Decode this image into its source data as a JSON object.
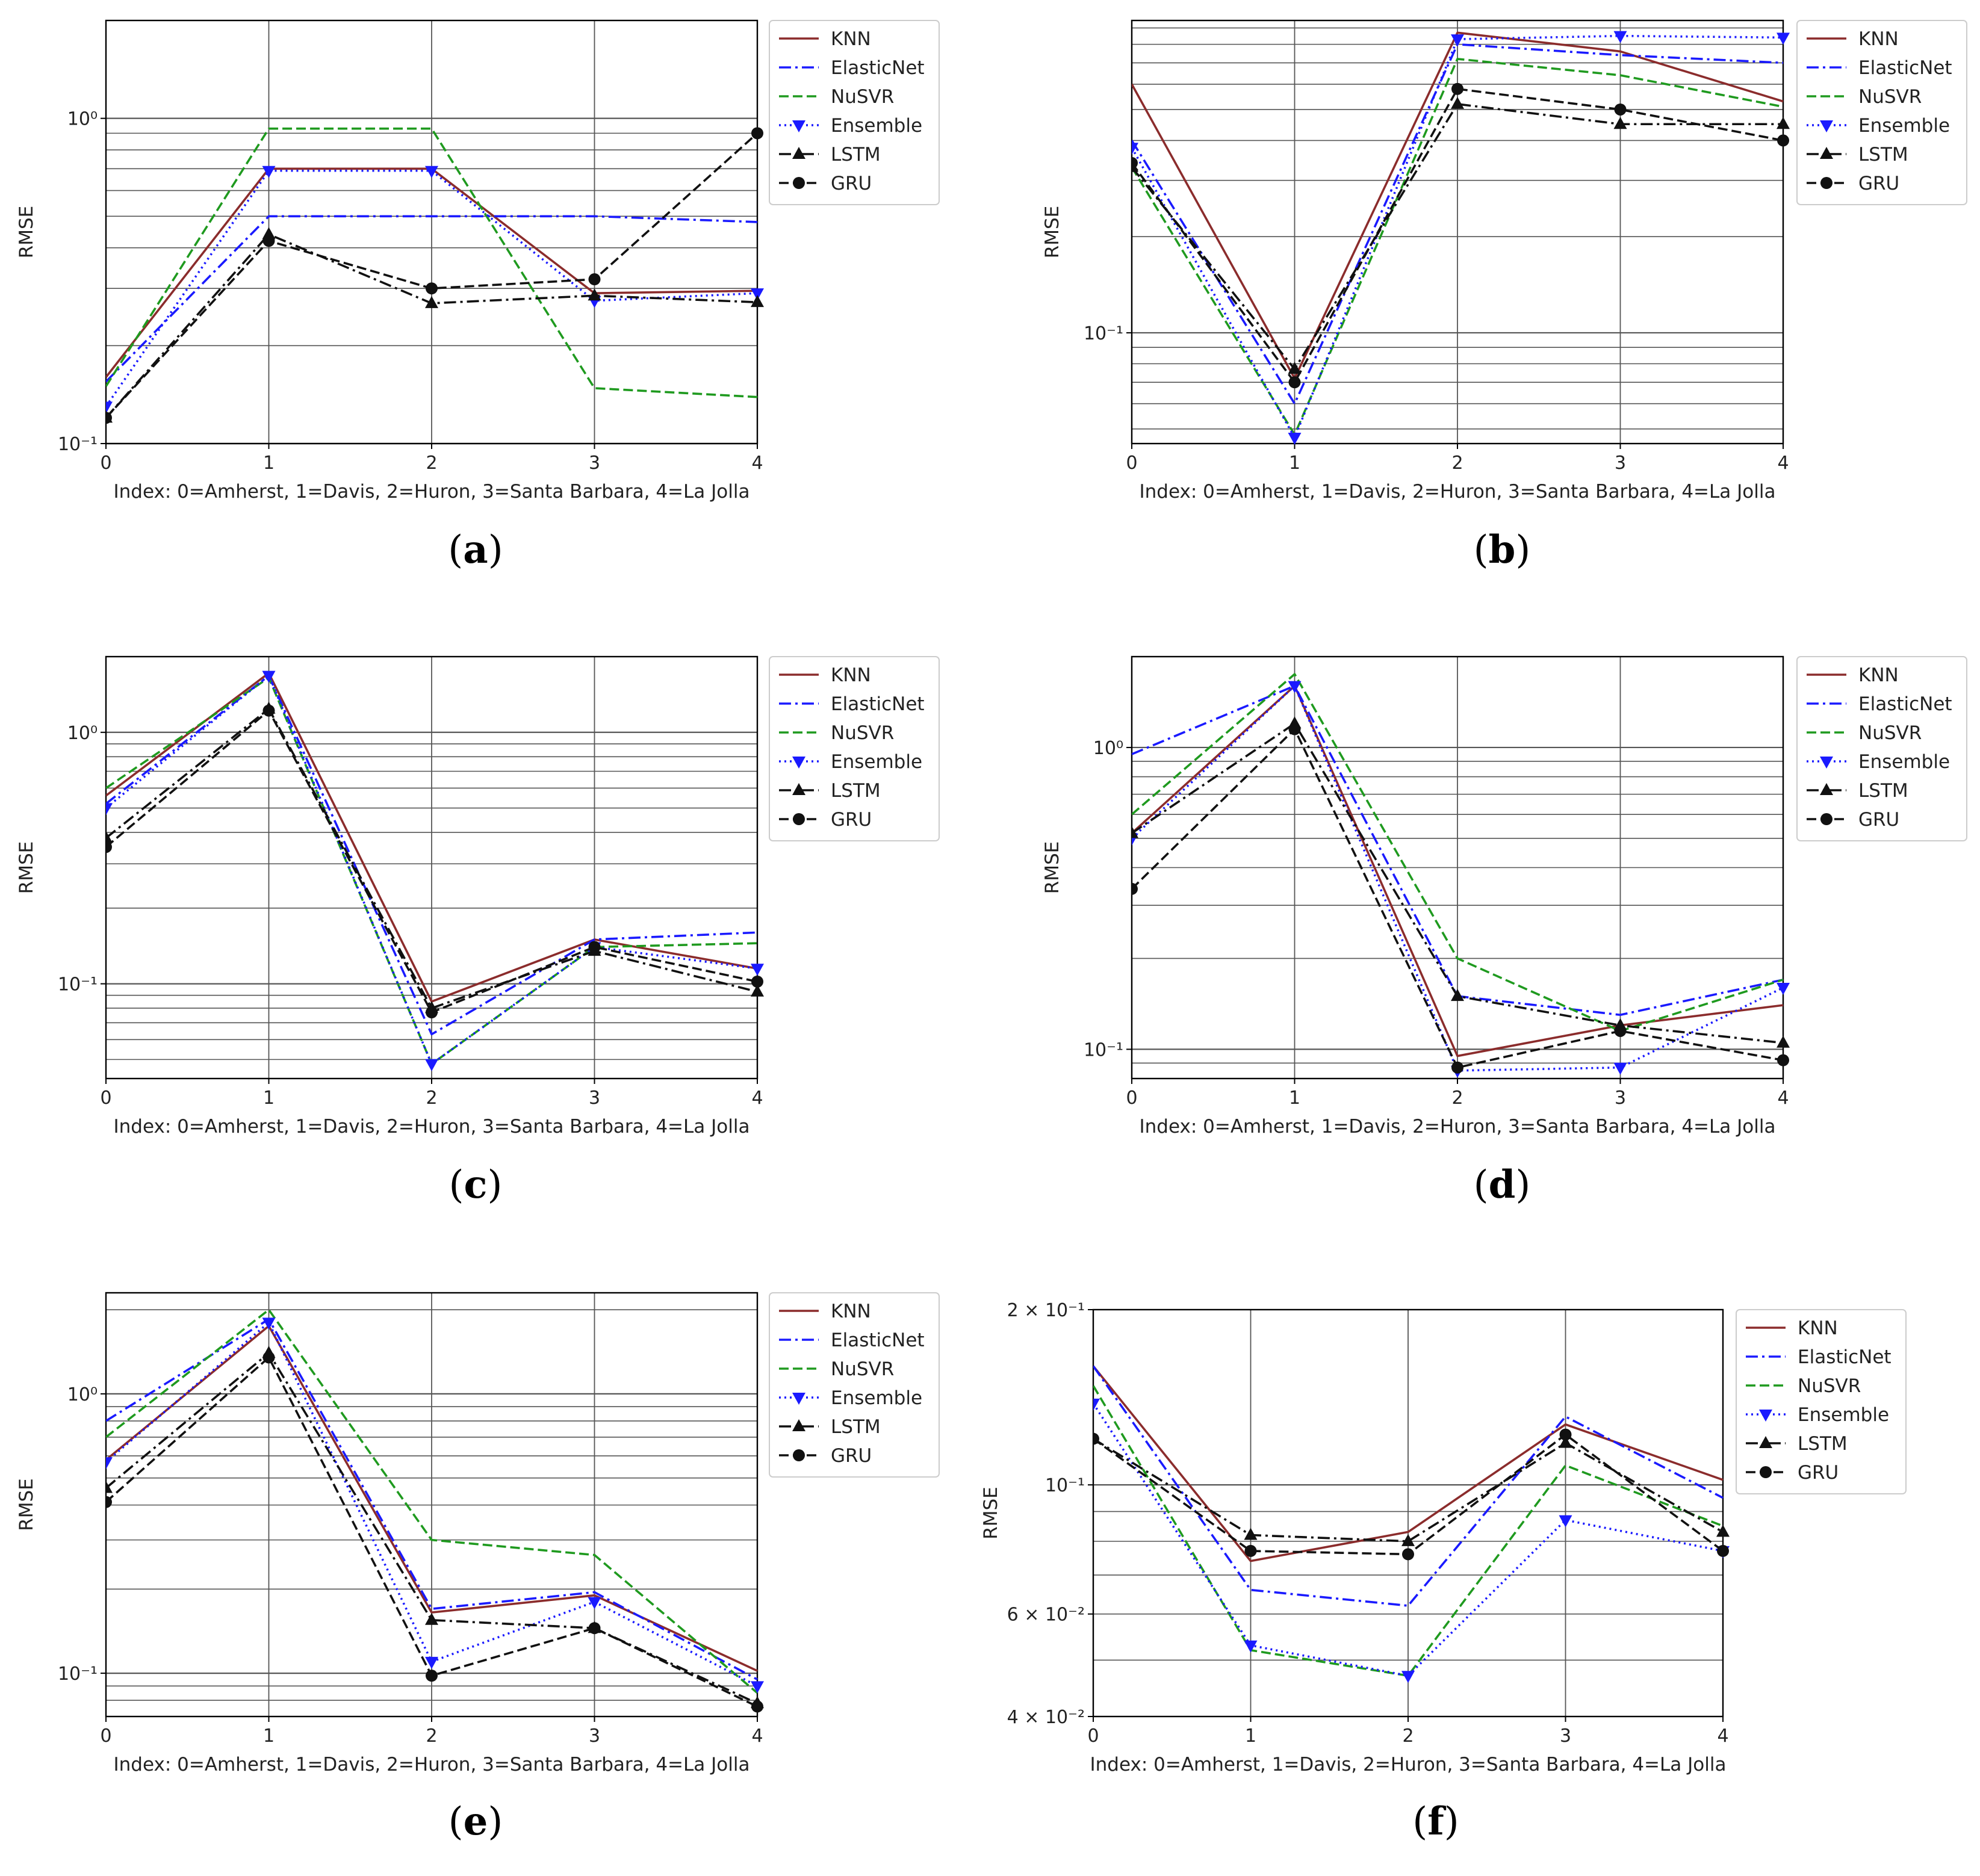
{
  "figure": {
    "x_index_label": "Index: 0=Amherst, 1=Davis, 2=Huron, 3=Santa Barbara, 4=La Jolla",
    "y_axis_label": "RMSE"
  },
  "legend_entries": [
    "KNN",
    "ElasticNet",
    "NuSVR",
    "Ensemble",
    "LSTM",
    "GRU"
  ],
  "series_styles": {
    "KNN": {
      "color": "#8b2c2c",
      "dash": "solid",
      "marker": "none"
    },
    "ElasticNet": {
      "color": "#1a1aff",
      "dash": "dashdot",
      "marker": "none"
    },
    "NuSVR": {
      "color": "#1f9a1f",
      "dash": "dashed",
      "marker": "none"
    },
    "Ensemble": {
      "color": "#1a1aff",
      "dash": "dotted",
      "marker": "triangle-down"
    },
    "LSTM": {
      "color": "#111111",
      "dash": "dashdot",
      "marker": "triangle-up"
    },
    "GRU": {
      "color": "#111111",
      "dash": "dashed",
      "marker": "circle"
    }
  },
  "chart_data": [
    {
      "panel": "(a)",
      "type": "line",
      "y_scale": "log",
      "grid": true,
      "legend": "outside-right",
      "x": [
        0,
        1,
        2,
        3,
        4
      ],
      "xlabel": "Index: 0=Amherst, 1=Davis, 2=Huron, 3=Santa Barbara, 4=La Jolla",
      "ylabel": "RMSE",
      "ylim": [
        0.1,
        2.0
      ],
      "y_tick_labels": [
        {
          "value": 0.1,
          "label": "10⁻¹"
        },
        {
          "value": 1.0,
          "label": "10⁰"
        }
      ],
      "series": [
        {
          "name": "KNN",
          "values": [
            0.16,
            0.7,
            0.7,
            0.29,
            0.295
          ]
        },
        {
          "name": "ElasticNet",
          "values": [
            0.155,
            0.5,
            0.5,
            0.5,
            0.48
          ]
        },
        {
          "name": "NuSVR",
          "values": [
            0.15,
            0.93,
            0.93,
            0.148,
            0.139
          ]
        },
        {
          "name": "Ensemble",
          "values": [
            0.13,
            0.69,
            0.69,
            0.275,
            0.29
          ]
        },
        {
          "name": "LSTM",
          "values": [
            0.12,
            0.44,
            0.27,
            0.285,
            0.272
          ]
        },
        {
          "name": "GRU",
          "values": [
            0.12,
            0.42,
            0.3,
            0.32,
            0.9
          ]
        }
      ]
    },
    {
      "panel": "(b)",
      "type": "line",
      "y_scale": "log",
      "grid": true,
      "legend": "outside-right",
      "x": [
        0,
        1,
        2,
        3,
        4
      ],
      "xlabel": "Index: 0=Amherst, 1=Davis, 2=Huron, 3=Santa Barbara, 4=La Jolla",
      "ylabel": "RMSE",
      "ylim": [
        0.045,
        0.95
      ],
      "y_tick_labels": [
        {
          "value": 0.1,
          "label": "10⁻¹"
        }
      ],
      "series": [
        {
          "name": "KNN",
          "values": [
            0.6,
            0.072,
            0.87,
            0.76,
            0.53
          ]
        },
        {
          "name": "ElasticNet",
          "values": [
            0.4,
            0.06,
            0.8,
            0.74,
            0.7
          ]
        },
        {
          "name": "NuSVR",
          "values": [
            0.33,
            0.048,
            0.72,
            0.64,
            0.51
          ]
        },
        {
          "name": "Ensemble",
          "values": [
            0.38,
            0.047,
            0.83,
            0.85,
            0.84
          ]
        },
        {
          "name": "LSTM",
          "values": [
            0.33,
            0.077,
            0.52,
            0.45,
            0.45
          ]
        },
        {
          "name": "GRU",
          "values": [
            0.34,
            0.07,
            0.58,
            0.5,
            0.4
          ]
        }
      ]
    },
    {
      "panel": "(c)",
      "type": "line",
      "y_scale": "log",
      "grid": true,
      "legend": "outside-right",
      "x": [
        0,
        1,
        2,
        3,
        4
      ],
      "xlabel": "Index: 0=Amherst, 1=Davis, 2=Huron, 3=Santa Barbara, 4=La Jolla",
      "ylabel": "RMSE",
      "ylim": [
        0.042,
        2.0
      ],
      "y_tick_labels": [
        {
          "value": 0.1,
          "label": "10⁻¹"
        },
        {
          "value": 1.0,
          "label": "10⁰"
        }
      ],
      "series": [
        {
          "name": "KNN",
          "values": [
            0.56,
            1.72,
            0.085,
            0.15,
            0.115
          ]
        },
        {
          "name": "ElasticNet",
          "values": [
            0.52,
            1.68,
            0.063,
            0.15,
            0.16
          ]
        },
        {
          "name": "NuSVR",
          "values": [
            0.6,
            1.65,
            0.048,
            0.14,
            0.145
          ]
        },
        {
          "name": "Ensemble",
          "values": [
            0.5,
            1.68,
            0.048,
            0.14,
            0.115
          ]
        },
        {
          "name": "LSTM",
          "values": [
            0.38,
            1.24,
            0.08,
            0.135,
            0.093
          ]
        },
        {
          "name": "GRU",
          "values": [
            0.35,
            1.22,
            0.077,
            0.14,
            0.102
          ]
        }
      ]
    },
    {
      "panel": "(d)",
      "type": "line",
      "y_scale": "log",
      "grid": true,
      "legend": "outside-right",
      "x": [
        0,
        1,
        2,
        3,
        4
      ],
      "xlabel": "Index: 0=Amherst, 1=Davis, 2=Huron, 3=Santa Barbara, 4=La Jolla",
      "ylabel": "RMSE",
      "ylim": [
        0.08,
        2.0
      ],
      "y_tick_labels": [
        {
          "value": 0.1,
          "label": "10⁻¹"
        },
        {
          "value": 1.0,
          "label": "10⁰"
        }
      ],
      "series": [
        {
          "name": "KNN",
          "values": [
            0.52,
            1.6,
            0.095,
            0.12,
            0.14
          ]
        },
        {
          "name": "ElasticNet",
          "values": [
            0.95,
            1.6,
            0.15,
            0.13,
            0.17
          ]
        },
        {
          "name": "NuSVR",
          "values": [
            0.6,
            1.75,
            0.2,
            0.115,
            0.17
          ]
        },
        {
          "name": "Ensemble",
          "values": [
            0.5,
            1.6,
            0.085,
            0.087,
            0.16
          ]
        },
        {
          "name": "LSTM",
          "values": [
            0.52,
            1.2,
            0.15,
            0.12,
            0.105
          ]
        },
        {
          "name": "GRU",
          "values": [
            0.34,
            1.15,
            0.087,
            0.115,
            0.092
          ]
        }
      ]
    },
    {
      "panel": "(e)",
      "type": "line",
      "y_scale": "log",
      "grid": true,
      "legend": "outside-right",
      "x": [
        0,
        1,
        2,
        3,
        4
      ],
      "xlabel": "Index: 0=Amherst, 1=Davis, 2=Huron, 3=Santa Barbara, 4=La Jolla",
      "ylabel": "RMSE",
      "ylim": [
        0.07,
        2.3
      ],
      "y_tick_labels": [
        {
          "value": 0.1,
          "label": "10⁻¹"
        },
        {
          "value": 1.0,
          "label": "10⁰"
        }
      ],
      "series": [
        {
          "name": "KNN",
          "values": [
            0.58,
            1.75,
            0.165,
            0.19,
            0.102
          ]
        },
        {
          "name": "ElasticNet",
          "values": [
            0.8,
            1.85,
            0.17,
            0.195,
            0.095
          ]
        },
        {
          "name": "NuSVR",
          "values": [
            0.7,
            2.0,
            0.3,
            0.265,
            0.085
          ]
        },
        {
          "name": "Ensemble",
          "values": [
            0.57,
            1.8,
            0.11,
            0.18,
            0.09
          ]
        },
        {
          "name": "LSTM",
          "values": [
            0.46,
            1.4,
            0.155,
            0.145,
            0.078
          ]
        },
        {
          "name": "GRU",
          "values": [
            0.41,
            1.35,
            0.098,
            0.145,
            0.076
          ]
        }
      ]
    },
    {
      "panel": "(f)",
      "type": "line",
      "y_scale": "log",
      "grid": true,
      "legend": "outside-right",
      "x": [
        0,
        1,
        2,
        3,
        4
      ],
      "xlabel": "Index: 0=Amherst, 1=Davis, 2=Huron, 3=Santa Barbara, 4=La Jolla",
      "ylabel": "RMSE",
      "ylim": [
        0.04,
        0.2
      ],
      "y_tick_labels": [
        {
          "value": 0.04,
          "label": "4 × 10⁻²"
        },
        {
          "value": 0.06,
          "label": "6 × 10⁻²"
        },
        {
          "value": 0.1,
          "label": "10⁻¹"
        },
        {
          "value": 0.2,
          "label": "2 × 10⁻¹"
        }
      ],
      "series": [
        {
          "name": "KNN",
          "values": [
            0.16,
            0.074,
            0.083,
            0.127,
            0.102
          ]
        },
        {
          "name": "ElasticNet",
          "values": [
            0.16,
            0.066,
            0.062,
            0.131,
            0.095
          ]
        },
        {
          "name": "NuSVR",
          "values": [
            0.148,
            0.052,
            0.047,
            0.108,
            0.085
          ]
        },
        {
          "name": "Ensemble",
          "values": [
            0.138,
            0.053,
            0.047,
            0.087,
            0.077
          ]
        },
        {
          "name": "LSTM",
          "values": [
            0.12,
            0.082,
            0.08,
            0.118,
            0.083
          ]
        },
        {
          "name": "GRU",
          "values": [
            0.12,
            0.077,
            0.076,
            0.122,
            0.077
          ]
        }
      ]
    }
  ]
}
